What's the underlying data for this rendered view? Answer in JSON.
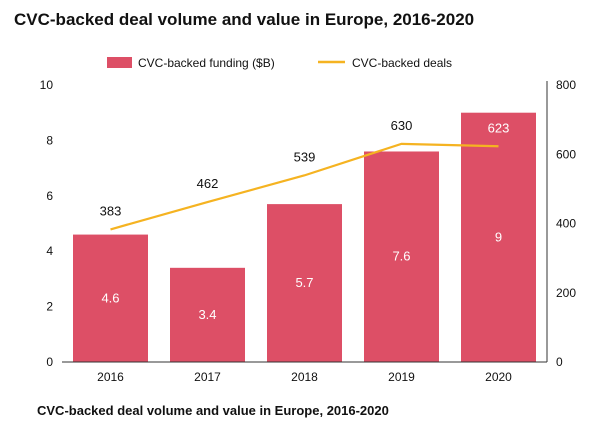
{
  "title": "CVC-backed deal volume and value in Europe, 2016-2020",
  "caption": "CVC-backed deal volume and value in Europe, 2016-2020",
  "colors": {
    "bar": "#dd4f66",
    "line": "#f5b321",
    "axis": "#333333",
    "bar_label": "#ffffff",
    "text": "#111111"
  },
  "chart_data": {
    "type": "bar",
    "title": "CVC-backed deal volume and value in Europe, 2016-2020",
    "categories": [
      "2016",
      "2017",
      "2018",
      "2019",
      "2020"
    ],
    "series": [
      {
        "name": "CVC-backed funding ($B)",
        "type": "bar",
        "axis": "left",
        "values": [
          4.6,
          3.4,
          5.7,
          7.6,
          9
        ]
      },
      {
        "name": "CVC-backed deals",
        "type": "line",
        "axis": "right",
        "values": [
          383,
          462,
          539,
          630,
          623
        ]
      }
    ],
    "y_left": {
      "min": 0,
      "max": 10,
      "ticks": [
        "0",
        "2",
        "4",
        "6",
        "8",
        "10"
      ]
    },
    "y_right": {
      "min": 0,
      "max": 800,
      "ticks": [
        "0",
        "200",
        "400",
        "600",
        "800"
      ]
    },
    "legend_position": "top",
    "grid": false
  }
}
